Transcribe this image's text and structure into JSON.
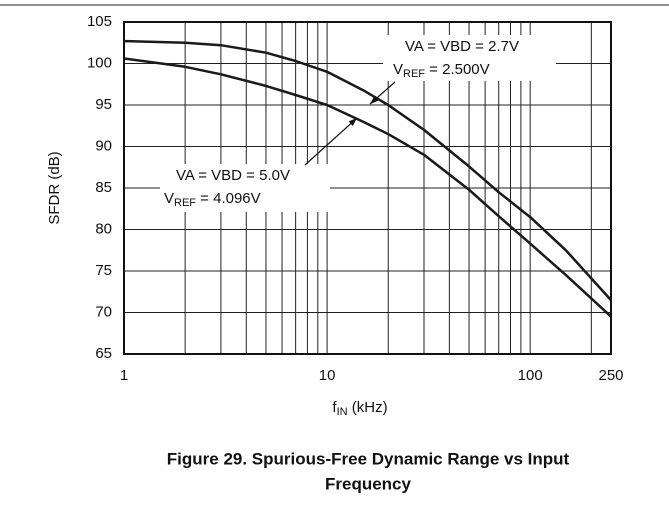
{
  "chart_data": {
    "type": "line",
    "title": "Figure 29. Spurious-Free Dynamic Range vs Input",
    "title_line2": "Frequency",
    "x_label": [
      "f",
      "IN",
      " (kHz)"
    ],
    "y_label": "SFDR (dB)",
    "log_x": true,
    "x": [
      1,
      2,
      3,
      5,
      7,
      10,
      15,
      20,
      30,
      50,
      70,
      100,
      150,
      250
    ],
    "series": [
      {
        "name": "VA = VBD = 2.7V",
        "color": "#1a1a1a",
        "values": [
          102.7,
          102.5,
          102.2,
          101.3,
          100.3,
          99,
          96.8,
          95,
          92,
          87.6,
          84.5,
          81.5,
          77.5,
          71.5
        ]
      },
      {
        "name": "VA = VBD = 5.0V",
        "color": "#1a1a1a",
        "values": [
          100.6,
          99.6,
          98.7,
          97.3,
          96.2,
          95,
          93,
          91.5,
          89,
          84.8,
          81.6,
          78.3,
          74.5,
          69.5
        ]
      }
    ],
    "annotations": [
      {
        "line1": "VA = VBD = 2.7V",
        "line2": [
          "V",
          "REF",
          " = 2.500V"
        ]
      },
      {
        "line1": "VA = VBD = 5.0V",
        "line2": [
          "V",
          "REF",
          " = 4.096V"
        ]
      }
    ],
    "xlim": [
      1,
      250
    ],
    "xticks": [
      1,
      10,
      100,
      250
    ],
    "x_minor_grid": [
      2,
      3,
      4,
      5,
      6,
      7,
      8,
      9,
      20,
      30,
      40,
      50,
      60,
      70,
      80,
      90,
      200
    ],
    "ylim": [
      65,
      105
    ],
    "yticks": [
      65,
      70,
      75,
      80,
      85,
      90,
      95,
      100,
      105
    ],
    "grid": true
  }
}
